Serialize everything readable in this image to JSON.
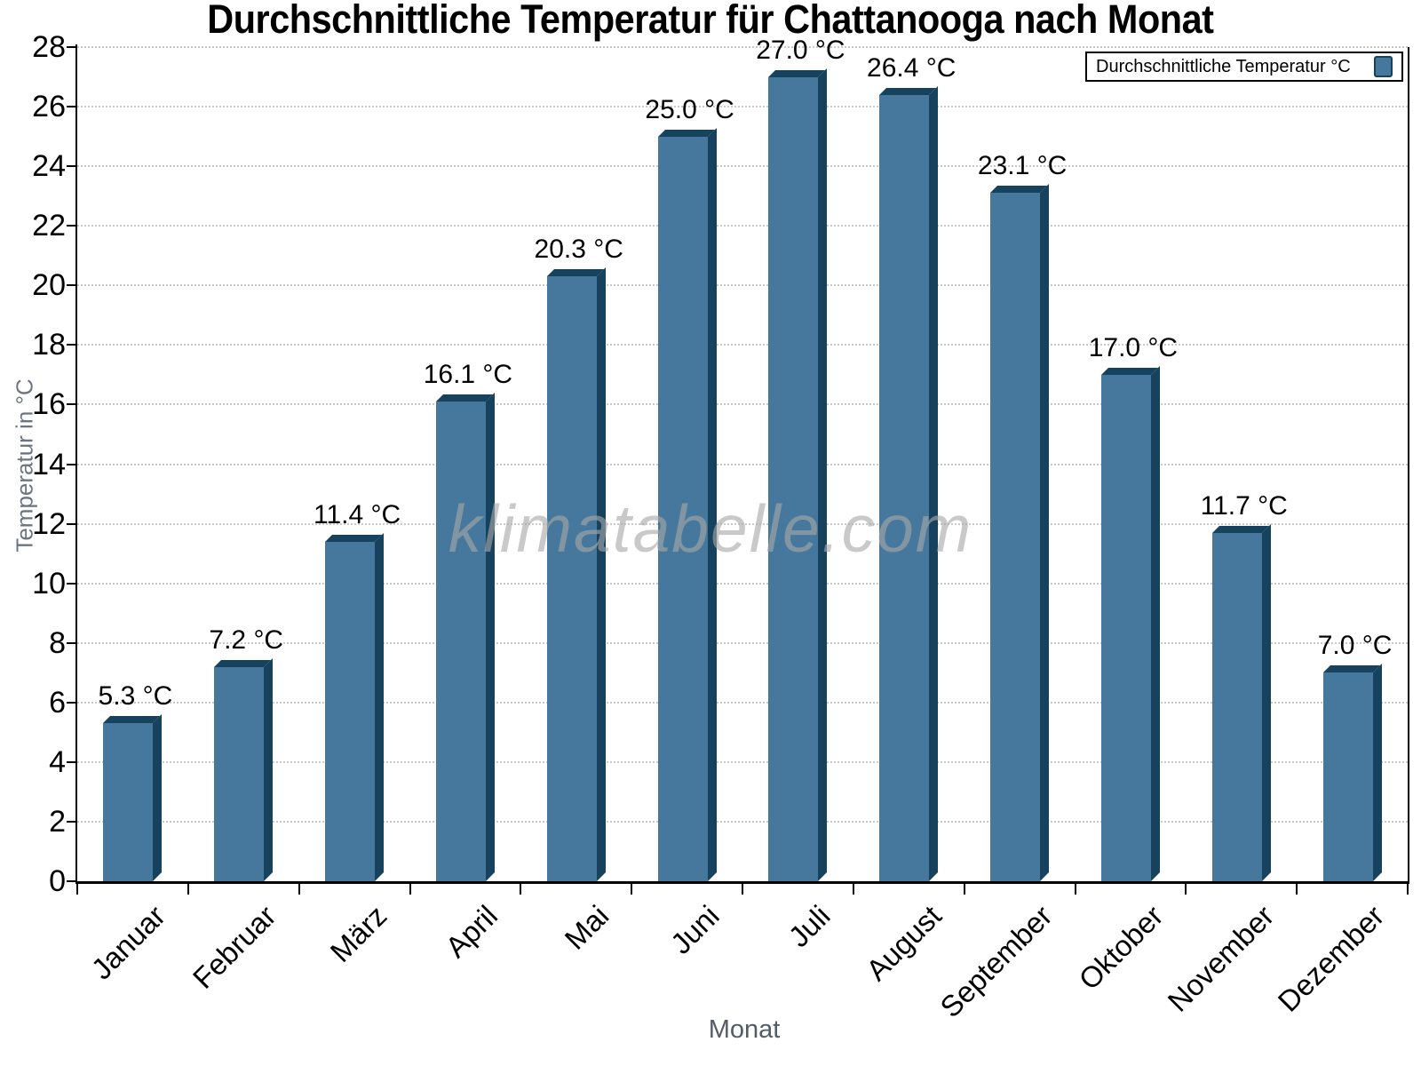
{
  "watermark": {
    "text": "klimatabelle.com"
  },
  "legend": {
    "label": "Durchschnittliche Temperatur °C",
    "position": "top-right"
  },
  "colors": {
    "bar_face": "#45789c",
    "bar_shadow": "#16425e",
    "grid": "#c9c9c9",
    "axis": "#000000",
    "watermark": "#a8a8a8"
  },
  "chart_data": {
    "type": "bar",
    "title": "Durchschnittliche Temperatur für Chattanooga nach Monat",
    "categories": [
      "Januar",
      "Februar",
      "März",
      "April",
      "Mai",
      "Juni",
      "Juli",
      "August",
      "September",
      "Oktober",
      "November",
      "Dezember"
    ],
    "values": [
      5.3,
      7.2,
      11.4,
      16.1,
      20.3,
      25.0,
      27.0,
      26.4,
      23.1,
      17.0,
      11.7,
      7.0
    ],
    "value_labels": [
      "5.3 °C",
      "7.2 °C",
      "11.4 °C",
      "16.1 °C",
      "20.3 °C",
      "25.0 °C",
      "27.0 °C",
      "26.4 °C",
      "23.1 °C",
      "17.0 °C",
      "11.7 °C",
      "7.0 °C"
    ],
    "series_name": "Durchschnittliche Temperatur °C",
    "xlabel": "Monat",
    "ylabel": "Temperatur in °C",
    "ylim": [
      0,
      28
    ],
    "ytick_step": 2,
    "yticks": [
      0,
      2,
      4,
      6,
      8,
      10,
      12,
      14,
      16,
      18,
      20,
      22,
      24,
      26,
      28
    ],
    "grid": "horizontal-dotted",
    "legend_position": "top-right",
    "bar_style": "3d-bevel"
  }
}
